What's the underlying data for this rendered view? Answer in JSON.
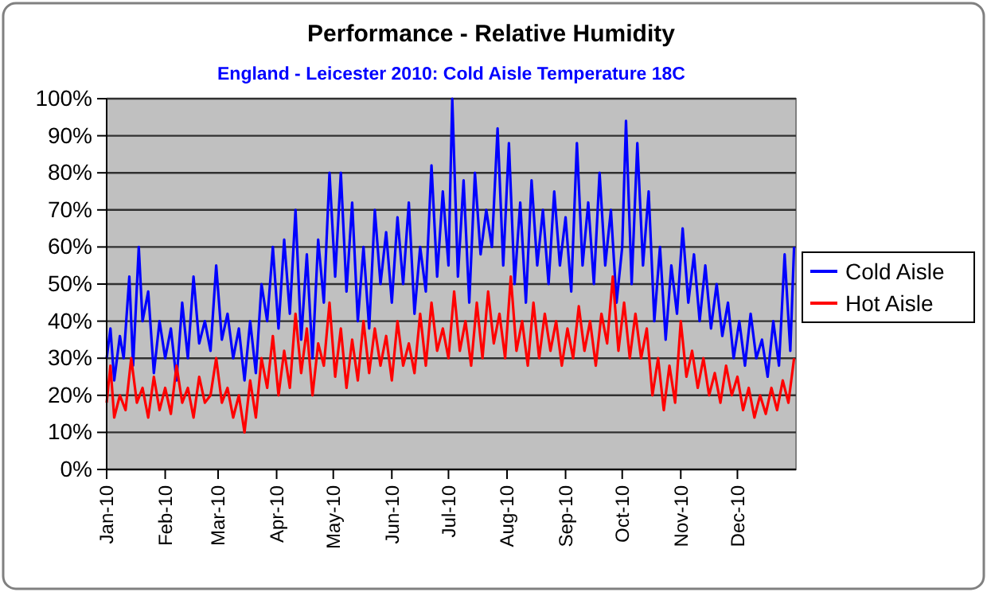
{
  "chart_data": {
    "type": "line",
    "title": "Performance - Relative Humidity",
    "subtitle": "England - Leicester 2010: Cold Aisle Temperature 18C",
    "xlim": [
      "2010-01-01",
      "2011-01-01"
    ],
    "xticks": [
      {
        "value": "2010-01-01",
        "label": "Jan-10"
      },
      {
        "value": "2010-02-01",
        "label": "Feb-10"
      },
      {
        "value": "2010-03-01",
        "label": "Mar-10"
      },
      {
        "value": "2010-04-01",
        "label": "Apr-10"
      },
      {
        "value": "2010-05-01",
        "label": "May-10"
      },
      {
        "value": "2010-06-01",
        "label": "Jun-10"
      },
      {
        "value": "2010-07-01",
        "label": "Jul-10"
      },
      {
        "value": "2010-08-01",
        "label": "Aug-10"
      },
      {
        "value": "2010-09-01",
        "label": "Sep-10"
      },
      {
        "value": "2010-10-01",
        "label": "Oct-10"
      },
      {
        "value": "2010-11-01",
        "label": "Nov-10"
      },
      {
        "value": "2010-12-01",
        "label": "Dec-10"
      }
    ],
    "ylim": [
      0,
      100
    ],
    "yticks": [
      {
        "value": 0,
        "label": "0%"
      },
      {
        "value": 10,
        "label": "10%"
      },
      {
        "value": 20,
        "label": "20%"
      },
      {
        "value": 30,
        "label": "30%"
      },
      {
        "value": 40,
        "label": "40%"
      },
      {
        "value": 50,
        "label": "50%"
      },
      {
        "value": 60,
        "label": "60%"
      },
      {
        "value": 70,
        "label": "70%"
      },
      {
        "value": 80,
        "label": "80%"
      },
      {
        "value": 90,
        "label": "90%"
      },
      {
        "value": 100,
        "label": "100%"
      }
    ],
    "grid": "y",
    "legend": "right",
    "series": [
      {
        "name": "Cold Aisle",
        "color": "#0000ff",
        "x": [
          "2010-01-01",
          "2010-01-03",
          "2010-01-05",
          "2010-01-08",
          "2010-01-10",
          "2010-01-13",
          "2010-01-15",
          "2010-01-18",
          "2010-01-20",
          "2010-01-23",
          "2010-01-26",
          "2010-01-29",
          "2010-02-01",
          "2010-02-04",
          "2010-02-07",
          "2010-02-10",
          "2010-02-13",
          "2010-02-16",
          "2010-02-19",
          "2010-02-22",
          "2010-02-25",
          "2010-02-28",
          "2010-03-03",
          "2010-03-06",
          "2010-03-09",
          "2010-03-12",
          "2010-03-15",
          "2010-03-18",
          "2010-03-21",
          "2010-03-24",
          "2010-03-27",
          "2010-03-30",
          "2010-04-02",
          "2010-04-05",
          "2010-04-08",
          "2010-04-11",
          "2010-04-14",
          "2010-04-17",
          "2010-04-20",
          "2010-04-23",
          "2010-04-26",
          "2010-04-29",
          "2010-05-02",
          "2010-05-05",
          "2010-05-08",
          "2010-05-11",
          "2010-05-14",
          "2010-05-17",
          "2010-05-20",
          "2010-05-23",
          "2010-05-26",
          "2010-05-29",
          "2010-06-01",
          "2010-06-04",
          "2010-06-07",
          "2010-06-10",
          "2010-06-13",
          "2010-06-16",
          "2010-06-19",
          "2010-06-22",
          "2010-06-25",
          "2010-06-28",
          "2010-07-01",
          "2010-07-03",
          "2010-07-06",
          "2010-07-09",
          "2010-07-12",
          "2010-07-15",
          "2010-07-18",
          "2010-07-21",
          "2010-07-24",
          "2010-07-27",
          "2010-07-30",
          "2010-08-02",
          "2010-08-05",
          "2010-08-08",
          "2010-08-11",
          "2010-08-14",
          "2010-08-17",
          "2010-08-20",
          "2010-08-23",
          "2010-08-26",
          "2010-08-29",
          "2010-09-01",
          "2010-09-04",
          "2010-09-07",
          "2010-09-10",
          "2010-09-13",
          "2010-09-16",
          "2010-09-19",
          "2010-09-22",
          "2010-09-25",
          "2010-09-28",
          "2010-10-01",
          "2010-10-03",
          "2010-10-06",
          "2010-10-09",
          "2010-10-12",
          "2010-10-15",
          "2010-10-18",
          "2010-10-21",
          "2010-10-24",
          "2010-10-27",
          "2010-10-30",
          "2010-11-02",
          "2010-11-05",
          "2010-11-08",
          "2010-11-11",
          "2010-11-14",
          "2010-11-17",
          "2010-11-20",
          "2010-11-23",
          "2010-11-26",
          "2010-11-29",
          "2010-12-02",
          "2010-12-05",
          "2010-12-08",
          "2010-12-11",
          "2010-12-14",
          "2010-12-17",
          "2010-12-20",
          "2010-12-23",
          "2010-12-26",
          "2010-12-29",
          "2010-12-31"
        ],
        "values": [
          30,
          38,
          24,
          36,
          30,
          52,
          28,
          60,
          40,
          48,
          26,
          40,
          30,
          38,
          24,
          45,
          30,
          52,
          34,
          40,
          32,
          55,
          35,
          42,
          30,
          38,
          24,
          40,
          26,
          50,
          40,
          60,
          38,
          62,
          42,
          70,
          35,
          58,
          30,
          62,
          45,
          80,
          52,
          80,
          48,
          72,
          40,
          60,
          38,
          70,
          50,
          64,
          45,
          68,
          50,
          72,
          42,
          60,
          48,
          82,
          52,
          75,
          55,
          100,
          52,
          78,
          45,
          80,
          58,
          70,
          60,
          92,
          55,
          88,
          50,
          72,
          45,
          78,
          55,
          70,
          50,
          75,
          55,
          68,
          48,
          88,
          55,
          72,
          50,
          80,
          55,
          70,
          45,
          60,
          94,
          50,
          88,
          55,
          75,
          40,
          60,
          35,
          55,
          42,
          65,
          45,
          58,
          40,
          55,
          38,
          50,
          36,
          45,
          30,
          40,
          28,
          42,
          30,
          35,
          25,
          40,
          28,
          58,
          32,
          60
        ]
      },
      {
        "name": "Hot Aisle",
        "color": "#ff0000",
        "x": [
          "2010-01-01",
          "2010-01-03",
          "2010-01-05",
          "2010-01-08",
          "2010-01-11",
          "2010-01-14",
          "2010-01-17",
          "2010-01-20",
          "2010-01-23",
          "2010-01-26",
          "2010-01-29",
          "2010-02-01",
          "2010-02-04",
          "2010-02-07",
          "2010-02-10",
          "2010-02-13",
          "2010-02-16",
          "2010-02-19",
          "2010-02-22",
          "2010-02-25",
          "2010-02-28",
          "2010-03-03",
          "2010-03-06",
          "2010-03-09",
          "2010-03-12",
          "2010-03-15",
          "2010-03-18",
          "2010-03-21",
          "2010-03-24",
          "2010-03-27",
          "2010-03-30",
          "2010-04-02",
          "2010-04-05",
          "2010-04-08",
          "2010-04-11",
          "2010-04-14",
          "2010-04-17",
          "2010-04-20",
          "2010-04-23",
          "2010-04-26",
          "2010-04-29",
          "2010-05-02",
          "2010-05-05",
          "2010-05-08",
          "2010-05-11",
          "2010-05-14",
          "2010-05-17",
          "2010-05-20",
          "2010-05-23",
          "2010-05-26",
          "2010-05-29",
          "2010-06-01",
          "2010-06-04",
          "2010-06-07",
          "2010-06-10",
          "2010-06-13",
          "2010-06-16",
          "2010-06-19",
          "2010-06-22",
          "2010-06-25",
          "2010-06-28",
          "2010-07-01",
          "2010-07-04",
          "2010-07-07",
          "2010-07-10",
          "2010-07-13",
          "2010-07-16",
          "2010-07-19",
          "2010-07-22",
          "2010-07-25",
          "2010-07-28",
          "2010-07-31",
          "2010-08-03",
          "2010-08-06",
          "2010-08-09",
          "2010-08-12",
          "2010-08-15",
          "2010-08-18",
          "2010-08-21",
          "2010-08-24",
          "2010-08-27",
          "2010-08-30",
          "2010-09-02",
          "2010-09-05",
          "2010-09-08",
          "2010-09-11",
          "2010-09-14",
          "2010-09-17",
          "2010-09-20",
          "2010-09-23",
          "2010-09-26",
          "2010-09-29",
          "2010-10-02",
          "2010-10-05",
          "2010-10-08",
          "2010-10-11",
          "2010-10-14",
          "2010-10-17",
          "2010-10-20",
          "2010-10-23",
          "2010-10-26",
          "2010-10-29",
          "2010-11-01",
          "2010-11-04",
          "2010-11-07",
          "2010-11-10",
          "2010-11-13",
          "2010-11-16",
          "2010-11-19",
          "2010-11-22",
          "2010-11-25",
          "2010-11-28",
          "2010-12-01",
          "2010-12-04",
          "2010-12-07",
          "2010-12-10",
          "2010-12-13",
          "2010-12-16",
          "2010-12-19",
          "2010-12-22",
          "2010-12-25",
          "2010-12-28",
          "2010-12-31"
        ],
        "values": [
          18,
          28,
          14,
          20,
          16,
          30,
          18,
          22,
          14,
          25,
          16,
          22,
          15,
          28,
          18,
          22,
          14,
          25,
          18,
          20,
          30,
          18,
          22,
          14,
          20,
          10,
          24,
          14,
          30,
          22,
          36,
          20,
          32,
          22,
          42,
          26,
          38,
          20,
          34,
          28,
          45,
          25,
          38,
          22,
          35,
          24,
          40,
          26,
          38,
          28,
          36,
          24,
          40,
          28,
          34,
          26,
          42,
          28,
          45,
          32,
          38,
          30,
          48,
          32,
          40,
          28,
          45,
          30,
          48,
          34,
          42,
          30,
          52,
          32,
          40,
          28,
          45,
          30,
          42,
          32,
          40,
          28,
          38,
          30,
          44,
          32,
          40,
          28,
          42,
          34,
          52,
          32,
          45,
          30,
          42,
          30,
          38,
          20,
          30,
          16,
          28,
          18,
          40,
          25,
          32,
          22,
          30,
          20,
          26,
          18,
          28,
          20,
          25,
          16,
          22,
          14,
          20,
          15,
          22,
          16,
          24,
          18,
          30
        ]
      }
    ]
  }
}
